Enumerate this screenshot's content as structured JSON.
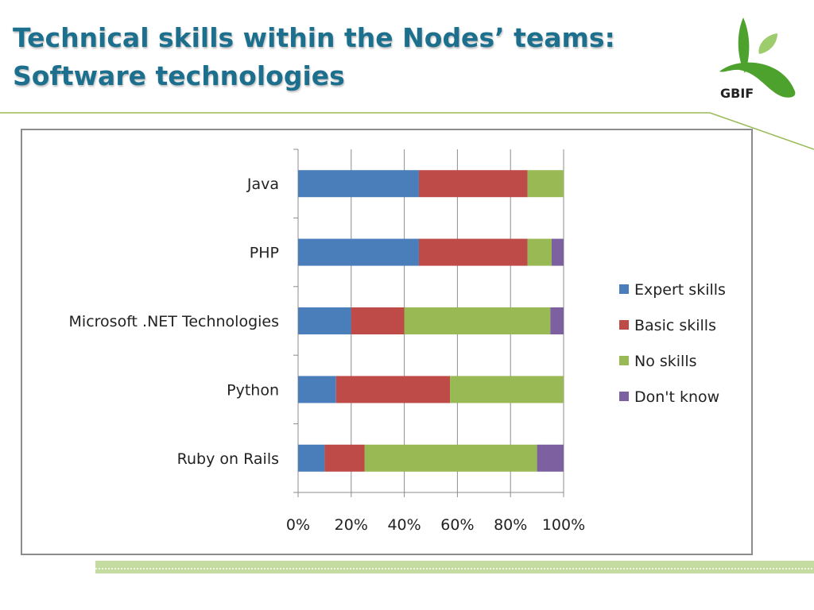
{
  "slide": {
    "title_line1": "Technical skills within the Nodes’ teams:",
    "title_line2": "Software technologies",
    "logo_text": "GBIF"
  },
  "chart_data": {
    "type": "bar",
    "orientation": "horizontal",
    "stacked": "percent",
    "categories": [
      "Java",
      "PHP",
      "Microsoft .NET Technologies",
      "Python",
      "Ruby on Rails"
    ],
    "series": [
      {
        "name": "Expert skills",
        "color": "#4a7ebb",
        "values": [
          45.5,
          45.5,
          20,
          14.3,
          10
        ]
      },
      {
        "name": "Basic skills",
        "color": "#be4b48",
        "values": [
          40.9,
          40.9,
          20,
          42.9,
          15
        ]
      },
      {
        "name": "No skills",
        "color": "#98b954",
        "values": [
          13.6,
          9.1,
          55,
          42.8,
          65
        ]
      },
      {
        "name": "Don't know",
        "color": "#7d60a0",
        "values": [
          0,
          4.5,
          5,
          0,
          10
        ]
      }
    ],
    "x_ticks": [
      "0%",
      "20%",
      "40%",
      "60%",
      "80%",
      "100%"
    ],
    "xlim": [
      0,
      100
    ],
    "grid": true,
    "legend_position": "right",
    "title": "",
    "xlabel": "",
    "ylabel": ""
  }
}
